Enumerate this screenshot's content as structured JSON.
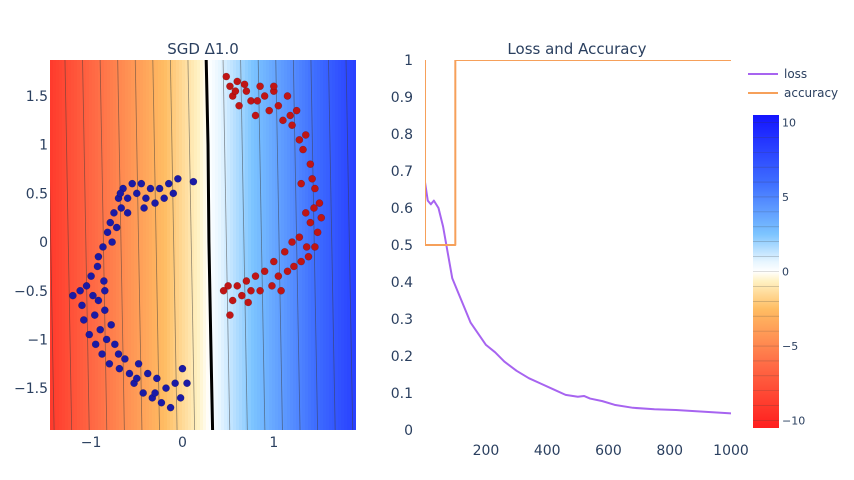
{
  "chart_data": [
    {
      "type": "contour-scatter",
      "title": "SGD Δ1.0",
      "xlabel": "",
      "ylabel": "",
      "xlim": [
        -1.45,
        1.9
      ],
      "ylim": [
        -1.93,
        1.87
      ],
      "xticks": [
        -1,
        0,
        1
      ],
      "xtick_labels": [
        "−1",
        "0",
        "1"
      ],
      "yticks": [
        1.5,
        1,
        0.5,
        0,
        -0.5,
        -1,
        -1.5
      ],
      "ytick_labels": [
        "1.5",
        "1",
        "0.5",
        "0",
        "−0.5",
        "−1",
        "−1.5"
      ],
      "decision_boundary": [
        [
          0.26,
          1.87
        ],
        [
          0.28,
          1.0
        ],
        [
          0.29,
          0.0
        ],
        [
          0.31,
          -1.0
        ],
        [
          0.33,
          -1.93
        ]
      ],
      "field": {
        "slope_x": 5.2,
        "offset_x": -1.5,
        "slope_y": 0.1
      },
      "series": [
        {
          "color": "#1a1aa6",
          "points": [
            [
              -1.2,
              -0.55
            ],
            [
              -1.12,
              -0.5
            ],
            [
              -1.1,
              -0.65
            ],
            [
              -1.08,
              -0.8
            ],
            [
              -1.05,
              -0.45
            ],
            [
              -1.02,
              -0.95
            ],
            [
              -1.0,
              -0.35
            ],
            [
              -0.98,
              -0.55
            ],
            [
              -0.96,
              -0.75
            ],
            [
              -0.95,
              -1.05
            ],
            [
              -0.93,
              -0.25
            ],
            [
              -0.92,
              -0.6
            ],
            [
              -0.9,
              -0.9
            ],
            [
              -0.88,
              -1.15
            ],
            [
              -0.87,
              -0.05
            ],
            [
              -0.86,
              -0.4
            ],
            [
              -0.85,
              -0.7
            ],
            [
              -0.83,
              -1.0
            ],
            [
              -0.82,
              0.1
            ],
            [
              -0.8,
              -1.25
            ],
            [
              -0.79,
              0.2
            ],
            [
              -0.78,
              -0.85
            ],
            [
              -0.77,
              0.0
            ],
            [
              -0.75,
              0.3
            ],
            [
              -0.74,
              -1.05
            ],
            [
              -0.72,
              0.15
            ],
            [
              -0.7,
              0.45
            ],
            [
              -0.69,
              -1.3
            ],
            [
              -0.67,
              0.35
            ],
            [
              -0.65,
              0.55
            ],
            [
              -0.63,
              -1.2
            ],
            [
              -0.6,
              0.45
            ],
            [
              -0.58,
              -1.35
            ],
            [
              -0.55,
              0.6
            ],
            [
              -0.53,
              -1.45
            ],
            [
              -0.5,
              0.5
            ],
            [
              -0.48,
              -1.25
            ],
            [
              -0.45,
              0.6
            ],
            [
              -0.43,
              -1.55
            ],
            [
              -0.4,
              0.45
            ],
            [
              -0.38,
              -1.35
            ],
            [
              -0.35,
              0.55
            ],
            [
              -0.33,
              -1.6
            ],
            [
              -0.3,
              0.4
            ],
            [
              -0.28,
              -1.4
            ],
            [
              -0.25,
              0.55
            ],
            [
              -0.23,
              -1.65
            ],
            [
              -0.2,
              0.45
            ],
            [
              -0.18,
              -1.5
            ],
            [
              -0.15,
              0.6
            ],
            [
              -0.13,
              -1.7
            ],
            [
              -0.1,
              0.5
            ],
            [
              -0.08,
              -1.45
            ],
            [
              -0.05,
              0.65
            ],
            [
              -0.02,
              -1.6
            ],
            [
              0.0,
              -1.3
            ],
            [
              0.05,
              -1.45
            ],
            [
              0.12,
              0.62
            ],
            [
              -0.92,
              -0.15
            ],
            [
              -0.85,
              -0.5
            ],
            [
              -0.7,
              -1.15
            ],
            [
              -0.68,
              0.5
            ],
            [
              -0.5,
              -1.4
            ],
            [
              -0.3,
              -1.55
            ],
            [
              -0.6,
              0.3
            ],
            [
              -0.42,
              0.35
            ]
          ]
        },
        {
          "color": "#c01515",
          "points": [
            [
              0.48,
              1.7
            ],
            [
              0.52,
              1.6
            ],
            [
              0.55,
              1.5
            ],
            [
              0.6,
              1.65
            ],
            [
              0.62,
              1.4
            ],
            [
              0.7,
              1.55
            ],
            [
              0.75,
              1.45
            ],
            [
              0.8,
              1.3
            ],
            [
              0.85,
              1.6
            ],
            [
              0.9,
              1.5
            ],
            [
              0.95,
              1.35
            ],
            [
              1.0,
              1.55
            ],
            [
              1.05,
              1.4
            ],
            [
              1.1,
              1.25
            ],
            [
              1.15,
              1.5
            ],
            [
              1.2,
              1.2
            ],
            [
              1.25,
              1.35
            ],
            [
              1.28,
              1.05
            ],
            [
              1.32,
              0.95
            ],
            [
              1.35,
              1.1
            ],
            [
              1.4,
              0.8
            ],
            [
              1.42,
              0.65
            ],
            [
              1.45,
              0.55
            ],
            [
              1.5,
              0.4
            ],
            [
              1.52,
              0.25
            ],
            [
              1.48,
              0.1
            ],
            [
              1.45,
              -0.05
            ],
            [
              1.4,
              0.2
            ],
            [
              1.38,
              -0.15
            ],
            [
              1.35,
              0.3
            ],
            [
              1.3,
              -0.2
            ],
            [
              1.28,
              0.05
            ],
            [
              1.22,
              -0.25
            ],
            [
              1.2,
              0.0
            ],
            [
              1.15,
              -0.3
            ],
            [
              1.12,
              -0.1
            ],
            [
              1.05,
              -0.35
            ],
            [
              1.0,
              -0.2
            ],
            [
              0.98,
              -0.45
            ],
            [
              0.9,
              -0.3
            ],
            [
              0.85,
              -0.5
            ],
            [
              0.8,
              -0.35
            ],
            [
              0.75,
              -0.5
            ],
            [
              0.7,
              -0.4
            ],
            [
              0.65,
              -0.55
            ],
            [
              0.6,
              -0.45
            ],
            [
              0.55,
              -0.6
            ],
            [
              0.5,
              -0.45
            ],
            [
              0.45,
              -0.5
            ],
            [
              0.52,
              -0.75
            ],
            [
              1.0,
              1.6
            ],
            [
              0.82,
              1.45
            ],
            [
              1.3,
              0.6
            ],
            [
              1.44,
              0.35
            ],
            [
              1.08,
              -0.5
            ],
            [
              0.72,
              -0.62
            ],
            [
              0.58,
              1.55
            ],
            [
              0.68,
              1.62
            ],
            [
              1.18,
              1.3
            ],
            [
              1.36,
              -0.05
            ]
          ]
        }
      ]
    },
    {
      "type": "line",
      "title": "Loss and Accuracy",
      "xlabel": "",
      "ylabel": "",
      "xlim": [
        1,
        1000
      ],
      "ylim": [
        0,
        1
      ],
      "xticks": [
        200,
        400,
        600,
        800,
        1000
      ],
      "yticks": [
        0,
        0.1,
        0.2,
        0.3,
        0.4,
        0.5,
        0.6,
        0.7,
        0.8,
        0.9,
        1
      ],
      "ytick_labels": [
        "0",
        "0.1",
        "0.2",
        "0.3",
        "0.4",
        "0.5",
        "0.6",
        "0.7",
        "0.8",
        "0.9",
        "1"
      ],
      "legend_position": "top-right",
      "series": [
        {
          "name": "loss",
          "color": "#a764f0",
          "x": [
            1,
            10,
            20,
            30,
            45,
            60,
            75,
            90,
            110,
            130,
            150,
            175,
            200,
            230,
            260,
            300,
            340,
            380,
            420,
            460,
            500,
            520,
            540,
            580,
            620,
            680,
            750,
            820,
            900,
            1000
          ],
          "y": [
            0.67,
            0.62,
            0.61,
            0.62,
            0.6,
            0.55,
            0.48,
            0.41,
            0.37,
            0.33,
            0.29,
            0.26,
            0.23,
            0.21,
            0.185,
            0.16,
            0.14,
            0.125,
            0.11,
            0.095,
            0.09,
            0.092,
            0.085,
            0.078,
            0.068,
            0.06,
            0.056,
            0.054,
            0.05,
            0.045
          ]
        },
        {
          "name": "accuracy",
          "color": "#f6a05a",
          "x": [
            1,
            1,
            100,
            100,
            1000
          ],
          "y": [
            1,
            0.5,
            0.5,
            1,
            1
          ]
        }
      ]
    }
  ],
  "colorbar": {
    "range": [
      -10.5,
      10.5
    ],
    "ticks": [
      10,
      5,
      0,
      -5,
      -10
    ],
    "tick_labels": [
      "10",
      "5",
      "0",
      "−5",
      "−10"
    ]
  }
}
